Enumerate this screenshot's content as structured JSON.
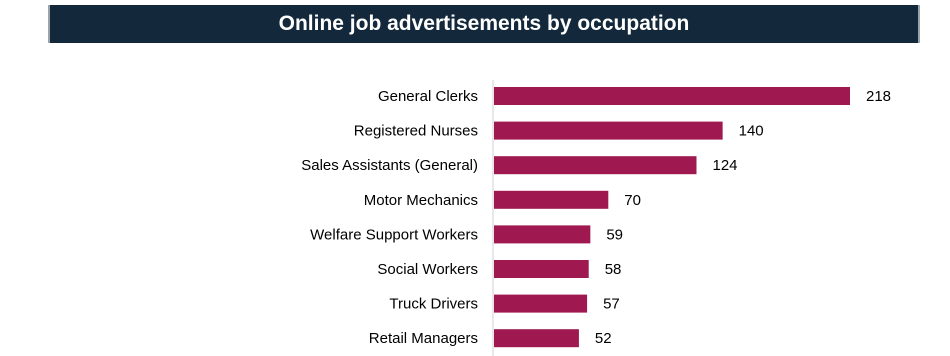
{
  "chart_data": {
    "type": "bar",
    "orientation": "horizontal",
    "title": "Online job advertisements by occupation",
    "categories": [
      "General Clerks",
      "Registered Nurses",
      "Sales Assistants (General)",
      "Motor Mechanics",
      "Welfare Support Workers",
      "Social Workers",
      "Truck Drivers",
      "Retail Managers"
    ],
    "values": [
      218,
      140,
      124,
      70,
      59,
      58,
      57,
      52
    ],
    "xlim": [
      0,
      220
    ],
    "data_labels": true,
    "grid": false,
    "legend": "none",
    "bar_color": "#a01850",
    "title_bg": "#13293b"
  }
}
